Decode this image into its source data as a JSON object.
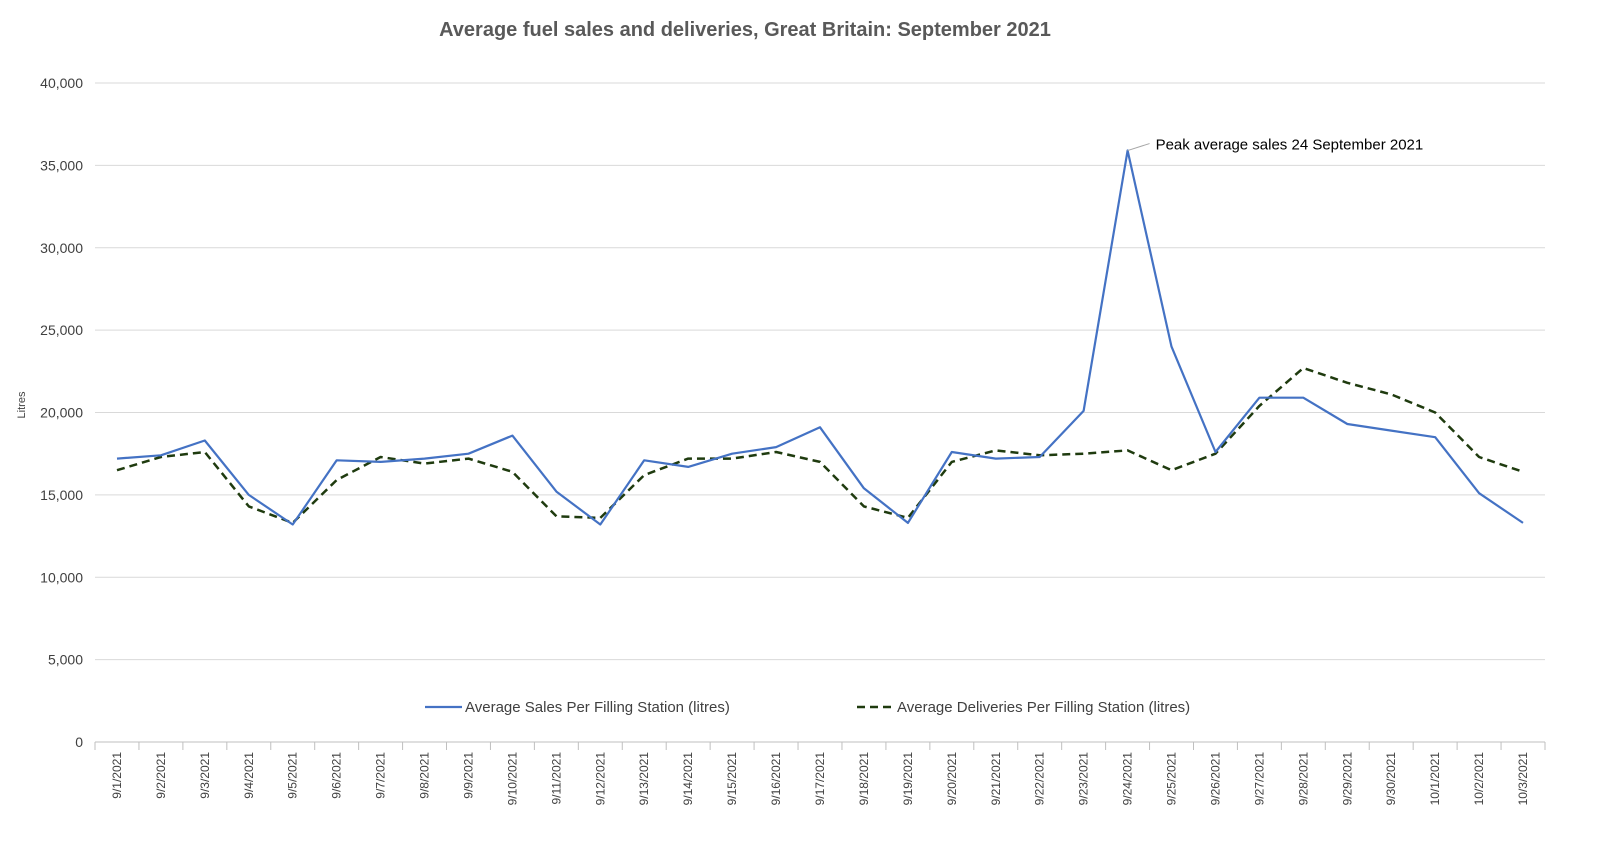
{
  "chart_data": {
    "type": "line",
    "title": "Average fuel sales and deliveries, Great Britain: September 2021",
    "ylabel": "Litres",
    "xlabel": "",
    "ylim": [
      0,
      40000
    ],
    "yticks": [
      0,
      5000,
      10000,
      15000,
      20000,
      25000,
      30000,
      35000,
      40000
    ],
    "ytick_labels": [
      "0",
      "5,000",
      "10,000",
      "15,000",
      "20,000",
      "25,000",
      "30,000",
      "35,000",
      "40,000"
    ],
    "grid": true,
    "legend_position": "bottom",
    "categories": [
      "9/1/2021",
      "9/2/2021",
      "9/3/2021",
      "9/4/2021",
      "9/5/2021",
      "9/6/2021",
      "9/7/2021",
      "9/8/2021",
      "9/9/2021",
      "9/10/2021",
      "9/11/2021",
      "9/12/2021",
      "9/13/2021",
      "9/14/2021",
      "9/15/2021",
      "9/16/2021",
      "9/17/2021",
      "9/18/2021",
      "9/19/2021",
      "9/20/2021",
      "9/21/2021",
      "9/22/2021",
      "9/23/2021",
      "9/24/2021",
      "9/25/2021",
      "9/26/2021",
      "9/27/2021",
      "9/28/2021",
      "9/29/2021",
      "9/30/2021",
      "10/1/2021",
      "10/2/2021",
      "10/3/2021"
    ],
    "series": [
      {
        "name": "Average Sales Per Filling Station (litres)",
        "color": "#4472c4",
        "style": "solid",
        "values": [
          17200,
          17400,
          18300,
          15000,
          13200,
          17100,
          17000,
          17200,
          17500,
          18600,
          15200,
          13200,
          17100,
          16700,
          17500,
          17900,
          19100,
          15400,
          13300,
          17600,
          17200,
          17300,
          20100,
          35900,
          24000,
          17600,
          20900,
          20900,
          19300,
          18900,
          18500,
          15100,
          13300
        ]
      },
      {
        "name": "Average Deliveries Per Filling Station (litres)",
        "color": "#1f3b0f",
        "style": "dashed",
        "values": [
          16500,
          17300,
          17600,
          14300,
          13300,
          15900,
          17300,
          16900,
          17200,
          16400,
          13700,
          13600,
          16200,
          17200,
          17200,
          17600,
          17000,
          14300,
          13600,
          17000,
          17700,
          17400,
          17500,
          17700,
          16500,
          17500,
          20400,
          22700,
          21800,
          21100,
          20000,
          17300,
          16400
        ]
      }
    ],
    "annotations": [
      {
        "text": "Peak average sales 24 September 2021",
        "x": "9/24/2021",
        "y": 35900
      }
    ]
  }
}
